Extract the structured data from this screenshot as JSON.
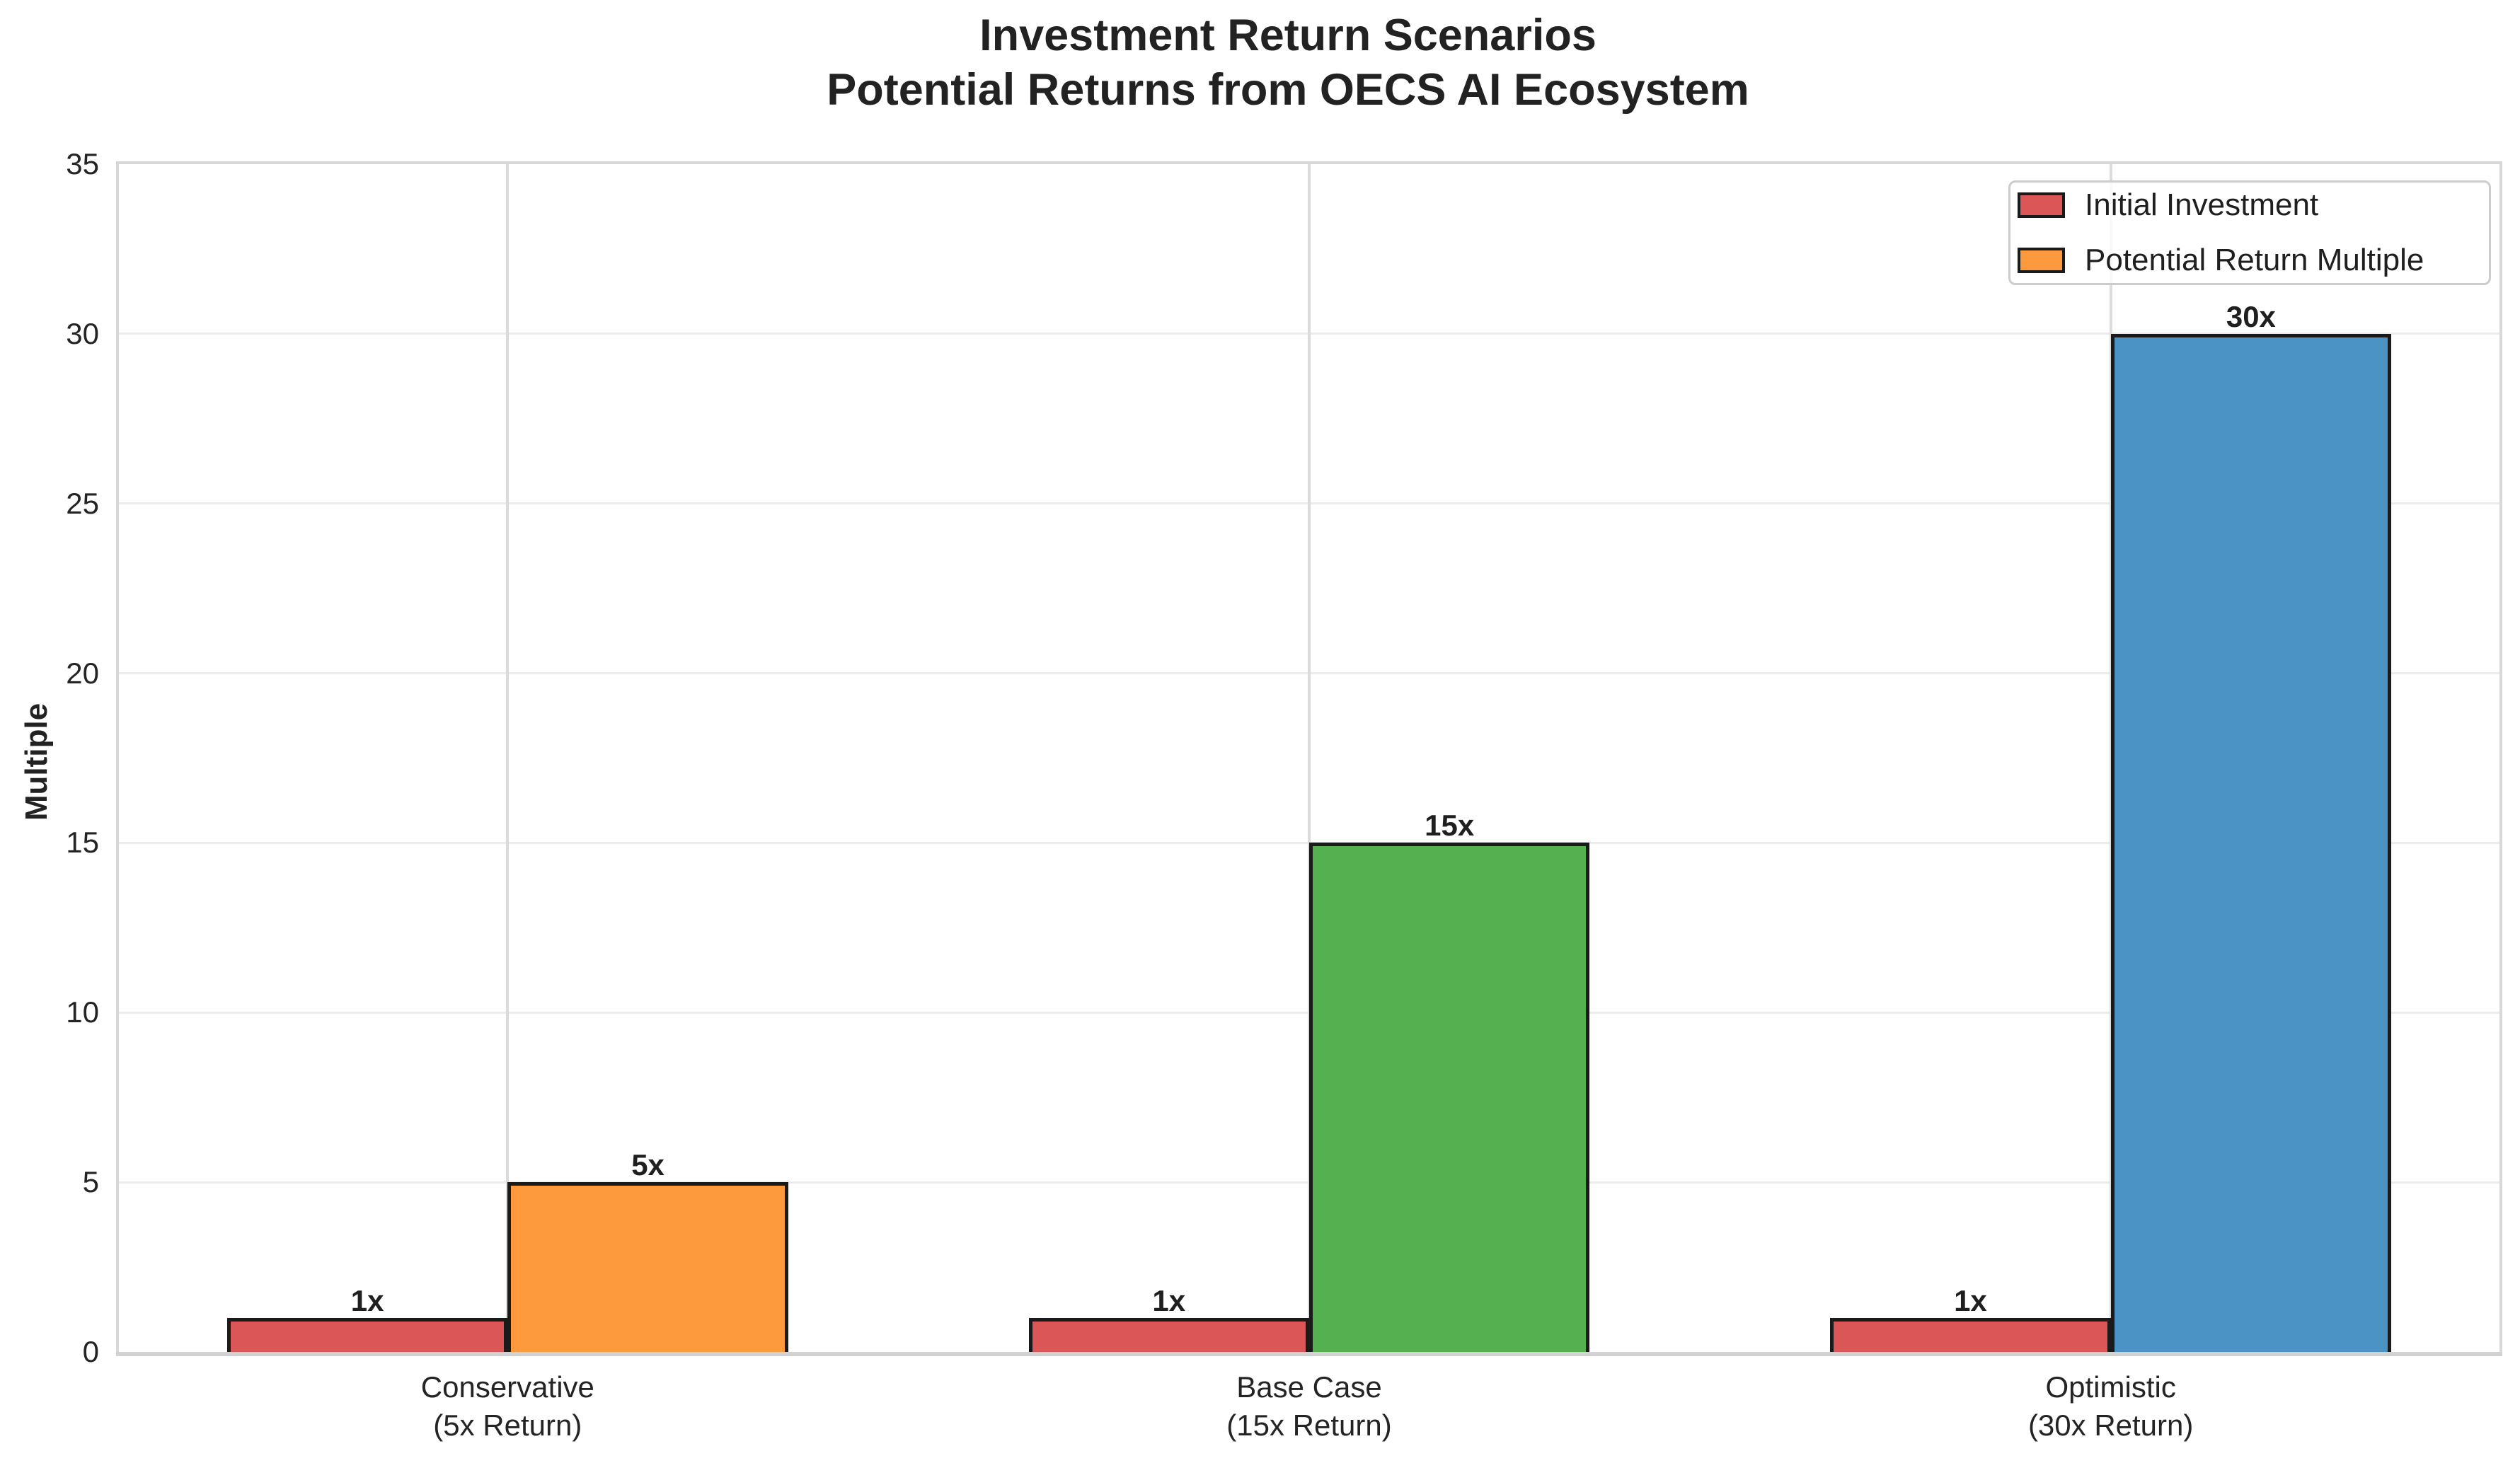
{
  "chart_data": {
    "type": "bar",
    "title": "Investment Return Scenarios",
    "subtitle": "Potential Returns from OECS AI Ecosystem",
    "categories": [
      "Conservative (5x Return)",
      "Base Case (15x Return)",
      "Optimistic (30x Return)"
    ],
    "category_lines": [
      [
        "Conservative",
        "(5x Return)"
      ],
      [
        "Base Case",
        "(15x Return)"
      ],
      [
        "Optimistic",
        "(30x Return)"
      ]
    ],
    "series": [
      {
        "name": "Initial Investment",
        "values": [
          1,
          1,
          1
        ],
        "colors": [
          "#DB5657",
          "#DB5657",
          "#DB5657"
        ],
        "bar_labels": [
          "1x",
          "1x",
          "1x"
        ]
      },
      {
        "name": "Potential Return Multiple",
        "values": [
          5,
          15,
          30
        ],
        "colors": [
          "#FD9A3E",
          "#55B14F",
          "#4C93C5"
        ],
        "bar_labels": [
          "5x",
          "15x",
          "30x"
        ]
      }
    ],
    "xlabel": "",
    "ylabel": "Multiple",
    "ylim": [
      0,
      35
    ],
    "yticks": [
      0,
      5,
      10,
      15,
      20,
      25,
      30,
      35
    ],
    "grid": "horizontal and vertical light gridlines",
    "legend_position": "upper right",
    "bar_edge_color": "#1a1a1a"
  },
  "legend": {
    "entries": [
      {
        "label": "Initial Investment",
        "color": "#DB5657"
      },
      {
        "label": "Potential Return Multiple",
        "color": "#FD9A3E"
      }
    ]
  }
}
